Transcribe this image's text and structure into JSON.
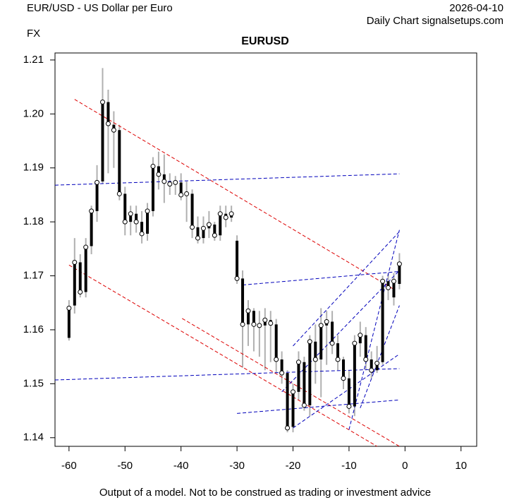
{
  "chart_data": {
    "type": "ohlc",
    "header_left": "EUR/USD - US Dollar per Euro",
    "header_right_top": "2026-04-10",
    "header_right_bottom": "Daily Chart signalsetups.com",
    "label": "FX",
    "title": "EURUSD",
    "footer": "Output of a model. Not to be construed as trading or investment advice",
    "bar_color": "#000000",
    "range_color": "#b0b0b0",
    "xlim": [
      -62.5,
      12.8
    ],
    "ylim": [
      1.1384,
      1.2113
    ],
    "xticks": [
      -60,
      -50,
      -40,
      -30,
      -20,
      -10,
      0,
      10
    ],
    "yticks": [
      1.14,
      1.15,
      1.16,
      1.17,
      1.18,
      1.19,
      {
        "value": 1.2,
        "label": "1.20"
      },
      1.21
    ],
    "x": [
      -60,
      -59,
      -58,
      -57,
      -56,
      -55,
      -54,
      -53,
      -52,
      -51,
      -50,
      -49,
      -48,
      -47,
      -46,
      -45,
      -44,
      -43,
      -42,
      -41,
      -40,
      -39,
      -38,
      -37,
      -36,
      -35,
      -34,
      -33,
      -32,
      -31,
      -30,
      -29,
      -28,
      -27,
      -26,
      -25,
      -24,
      -23,
      -22,
      -21,
      -20,
      -19,
      -18,
      -17,
      -16,
      -15,
      -14,
      -13,
      -12,
      -11,
      -10,
      -9,
      -8,
      -7,
      -6,
      -5,
      -4,
      -3,
      -2,
      -1
    ],
    "open": [
      1.1585,
      1.1645,
      1.1725,
      1.167,
      1.1755,
      1.182,
      1.1875,
      1.2022,
      1.198,
      1.197,
      1.1852,
      1.18,
      1.1815,
      1.18,
      1.1778,
      1.182,
      1.1903,
      1.1888,
      1.1875,
      1.187,
      1.1873,
      1.185,
      1.1852,
      1.179,
      1.177,
      1.1788,
      1.1795,
      1.1775,
      1.1815,
      1.1808,
      1.1765,
      1.1695,
      1.161,
      1.1635,
      1.161,
      1.1608,
      1.1618,
      1.161,
      1.1545,
      1.152,
      1.142,
      1.1485,
      1.154,
      1.146,
      1.1578,
      1.1545,
      1.1608,
      1.1615,
      1.1575,
      1.1545,
      1.151,
      1.1458,
      1.1575,
      1.159,
      1.1545,
      1.1525,
      1.154,
      1.169,
      1.166,
      1.1685
    ],
    "high": [
      1.1655,
      1.177,
      1.174,
      1.177,
      1.183,
      1.1905,
      1.2085,
      1.2045,
      1.2005,
      1.198,
      1.1865,
      1.183,
      1.183,
      1.182,
      1.1835,
      1.192,
      1.193,
      1.1925,
      1.189,
      1.1885,
      1.189,
      1.1875,
      1.186,
      1.181,
      1.181,
      1.182,
      1.18,
      1.183,
      1.183,
      1.183,
      1.1775,
      1.171,
      1.1655,
      1.164,
      1.1635,
      1.164,
      1.1635,
      1.162,
      1.156,
      1.1525,
      1.15,
      1.156,
      1.155,
      1.159,
      1.161,
      1.164,
      1.1635,
      1.1635,
      1.159,
      1.155,
      1.1525,
      1.159,
      1.1615,
      1.1605,
      1.156,
      1.157,
      1.17,
      1.1705,
      1.1705,
      1.1742
    ],
    "low": [
      1.158,
      1.163,
      1.166,
      1.166,
      1.174,
      1.18,
      1.187,
      1.189,
      1.19,
      1.184,
      1.1775,
      1.1775,
      1.178,
      1.176,
      1.1765,
      1.181,
      1.186,
      1.1835,
      1.185,
      1.185,
      1.184,
      1.18,
      1.177,
      1.176,
      1.176,
      1.177,
      1.1765,
      1.1765,
      1.179,
      1.18,
      1.1685,
      1.153,
      1.157,
      1.156,
      1.155,
      1.1525,
      1.154,
      1.152,
      1.15,
      1.141,
      1.141,
      1.147,
      1.145,
      1.144,
      1.15,
      1.1475,
      1.1535,
      1.1555,
      1.1525,
      1.149,
      1.1445,
      1.144,
      1.155,
      1.1525,
      1.151,
      1.152,
      1.1535,
      1.1655,
      1.1645,
      1.1675
    ],
    "close": [
      1.164,
      1.1725,
      1.167,
      1.1753,
      1.182,
      1.1873,
      1.2022,
      1.1982,
      1.197,
      1.1852,
      1.18,
      1.1815,
      1.18,
      1.1778,
      1.182,
      1.1903,
      1.1888,
      1.1875,
      1.187,
      1.1873,
      1.185,
      1.1852,
      1.179,
      1.177,
      1.1788,
      1.1795,
      1.1775,
      1.1815,
      1.1808,
      1.1815,
      1.1695,
      1.161,
      1.1635,
      1.161,
      1.1608,
      1.1618,
      1.1612,
      1.1545,
      1.152,
      1.1418,
      1.1485,
      1.154,
      1.146,
      1.1578,
      1.1545,
      1.1608,
      1.1615,
      1.1575,
      1.1545,
      1.151,
      1.1458,
      1.1575,
      1.159,
      1.1545,
      1.1525,
      1.1538,
      1.169,
      1.1678,
      1.169,
      1.1722
    ],
    "lines": [
      {
        "color": "#dd0000",
        "x": [
          -59,
          -2
        ],
        "y": [
          1.2027,
          1.1675
        ]
      },
      {
        "color": "#dd0000",
        "x": [
          -60,
          -5
        ],
        "y": [
          1.172,
          1.1384
        ]
      },
      {
        "color": "#dd0000",
        "x": [
          -39.8,
          -1
        ],
        "y": [
          1.1621,
          1.1384
        ]
      },
      {
        "color": "#0000bb",
        "x": [
          -62.5,
          -1
        ],
        "y": [
          1.1868,
          1.1889
        ]
      },
      {
        "color": "#0000bb",
        "x": [
          -29,
          -1
        ],
        "y": [
          1.1683,
          1.1708
        ]
      },
      {
        "color": "#0000bb",
        "x": [
          -62.5,
          -1
        ],
        "y": [
          1.1507,
          1.1528
        ]
      },
      {
        "color": "#0000bb",
        "x": [
          -30,
          -1
        ],
        "y": [
          1.1445,
          1.147
        ]
      },
      {
        "color": "#0000bb",
        "x": [
          -20,
          -1
        ],
        "y": [
          1.1418,
          1.1555
        ]
      },
      {
        "color": "#0000bb",
        "x": [
          -20,
          -1
        ],
        "y": [
          1.157,
          1.1782
        ]
      },
      {
        "color": "#0000bb",
        "x": [
          -10,
          -1
        ],
        "y": [
          1.1415,
          1.1785
        ]
      },
      {
        "color": "#0000bb",
        "x": [
          -8,
          -1
        ],
        "y": [
          1.1455,
          1.1645
        ]
      },
      {
        "color": "#0000bb",
        "x": [
          -22,
          -1
        ],
        "y": [
          1.1485,
          1.171
        ]
      }
    ]
  }
}
